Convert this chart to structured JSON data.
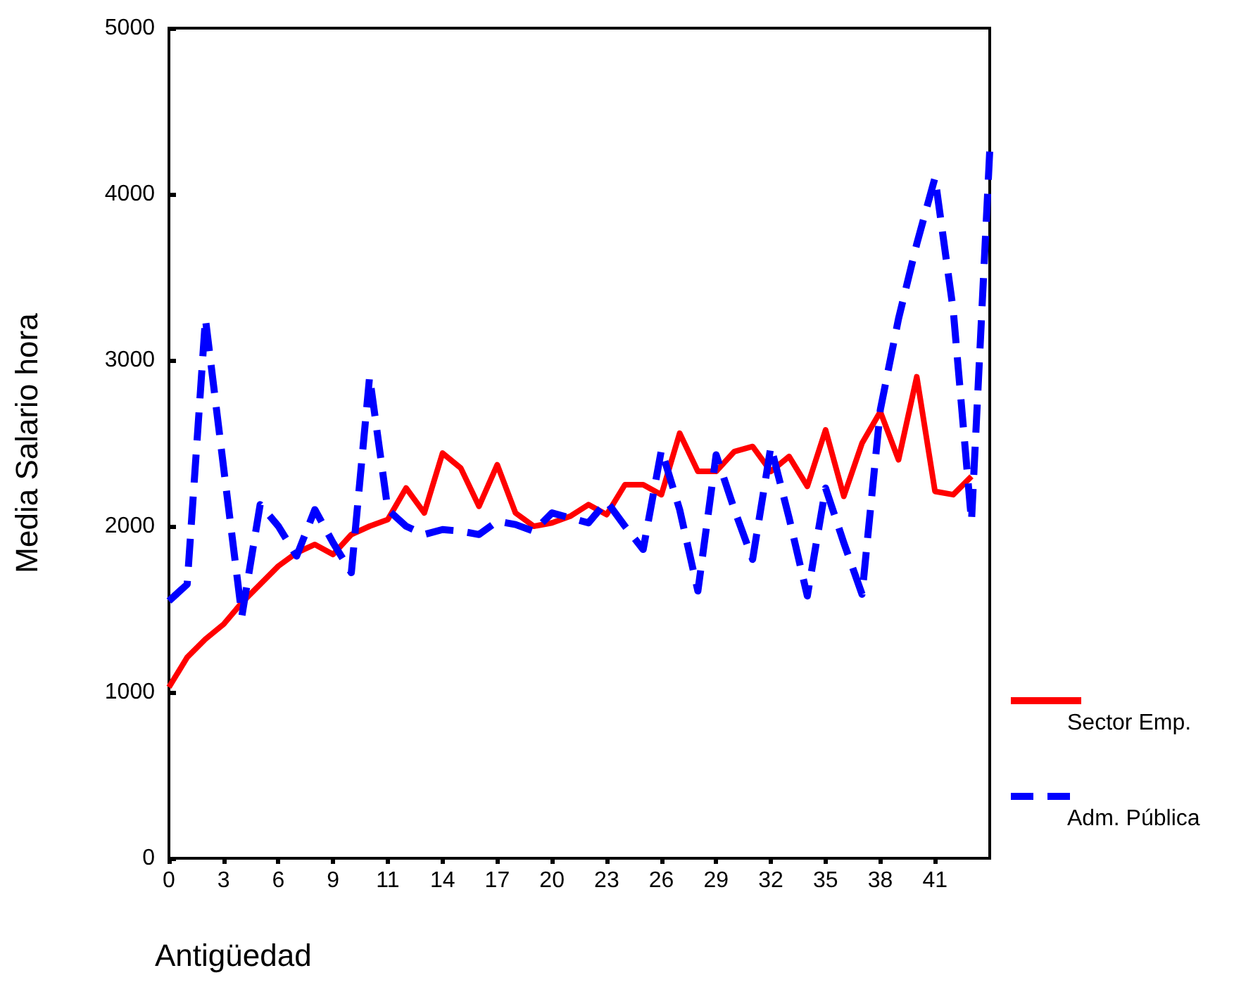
{
  "chart_data": {
    "type": "line",
    "xlabel": "Antigüedad",
    "ylabel": "Media Salario hora",
    "categories": [
      "0",
      null,
      null,
      "3",
      null,
      null,
      "6",
      null,
      null,
      "9",
      null,
      null,
      "11",
      null,
      null,
      "14",
      null,
      null,
      "17",
      null,
      null,
      "20",
      null,
      null,
      "23",
      null,
      null,
      "26",
      null,
      null,
      "29",
      null,
      null,
      "32",
      null,
      null,
      "35",
      null,
      null,
      "38",
      null,
      null,
      "41",
      null,
      null,
      null
    ],
    "series": [
      {
        "name": "Sector Emp.",
        "color": "#ff0000",
        "line_style": "solid",
        "values": [
          1030,
          1210,
          1320,
          1410,
          1540,
          1650,
          1760,
          1840,
          1890,
          1830,
          1950,
          2000,
          2040,
          2230,
          2080,
          2440,
          2350,
          2120,
          2370,
          2080,
          2000,
          2020,
          2060,
          2130,
          2070,
          2250,
          2250,
          2190,
          2560,
          2330,
          2330,
          2450,
          2480,
          2330,
          2420,
          2240,
          2580,
          2180,
          2500,
          2690,
          2400,
          2900,
          2210,
          2190,
          2300,
          null
        ]
      },
      {
        "name": "Adm. Pública",
        "color": "#0000ff",
        "line_style": "dashed",
        "values": [
          1550,
          1650,
          3250,
          2350,
          1460,
          2130,
          2000,
          1820,
          2100,
          1900,
          1720,
          2900,
          2100,
          2000,
          1950,
          1980,
          1970,
          1950,
          2030,
          2010,
          1970,
          2080,
          2050,
          2020,
          2150,
          2000,
          1860,
          2460,
          2100,
          1610,
          2430,
          2100,
          1800,
          2480,
          2050,
          1580,
          2230,
          1900,
          1590,
          2700,
          3250,
          3700,
          4100,
          3300,
          2030,
          4260
        ]
      }
    ],
    "ylim": [
      0,
      5000
    ],
    "yticks": [
      0,
      1000,
      2000,
      3000,
      4000,
      5000
    ],
    "grid": false,
    "legend": "bottom right",
    "marker": "none"
  }
}
